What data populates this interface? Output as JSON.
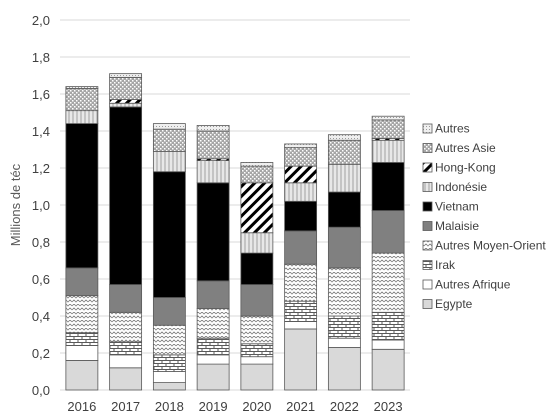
{
  "chart_data": {
    "type": "bar",
    "stacked": true,
    "title": "",
    "xlabel": "",
    "ylabel": "Millions de téc",
    "ylim": [
      0,
      2.0
    ],
    "yticks": [
      "0,0",
      "0,2",
      "0,4",
      "0,6",
      "0,8",
      "1,0",
      "1,2",
      "1,4",
      "1,6",
      "1,8",
      "2,0"
    ],
    "grid": true,
    "legend_position": "right",
    "categories": [
      "2016",
      "2017",
      "2018",
      "2019",
      "2020",
      "2021",
      "2022",
      "2023"
    ],
    "series": [
      {
        "name": "Egypte",
        "values": [
          0.16,
          0.12,
          0.04,
          0.14,
          0.14,
          0.33,
          0.23,
          0.22
        ]
      },
      {
        "name": "Autres Afrique",
        "values": [
          0.08,
          0.07,
          0.06,
          0.05,
          0.04,
          0.04,
          0.05,
          0.05
        ]
      },
      {
        "name": "Irak",
        "values": [
          0.07,
          0.07,
          0.09,
          0.09,
          0.07,
          0.11,
          0.12,
          0.15
        ]
      },
      {
        "name": "Autres Moyen-Orient",
        "values": [
          0.2,
          0.16,
          0.16,
          0.16,
          0.15,
          0.2,
          0.26,
          0.32
        ]
      },
      {
        "name": "Malaisie",
        "values": [
          0.15,
          0.15,
          0.15,
          0.15,
          0.17,
          0.18,
          0.22,
          0.23
        ]
      },
      {
        "name": "Vietnam",
        "values": [
          0.78,
          0.96,
          0.68,
          0.53,
          0.17,
          0.16,
          0.19,
          0.26
        ]
      },
      {
        "name": "Indonésie",
        "values": [
          0.07,
          0.02,
          0.11,
          0.12,
          0.11,
          0.1,
          0.15,
          0.12
        ]
      },
      {
        "name": "Hong-Kong",
        "values": [
          0.0,
          0.02,
          0.0,
          0.01,
          0.27,
          0.09,
          0.0,
          0.01
        ]
      },
      {
        "name": "Autres Asie",
        "values": [
          0.12,
          0.12,
          0.12,
          0.15,
          0.09,
          0.1,
          0.13,
          0.1
        ]
      },
      {
        "name": "Autres",
        "values": [
          0.01,
          0.02,
          0.03,
          0.03,
          0.02,
          0.02,
          0.03,
          0.02
        ]
      }
    ],
    "legend_order": [
      "Autres",
      "Autres Asie",
      "Hong-Kong",
      "Indonésie",
      "Vietnam",
      "Malaisie",
      "Autres Moyen-Orient",
      "Irak",
      "Autres Afrique",
      "Egypte"
    ],
    "series_styles": {
      "Egypte": {
        "fill": "#d9d9d9",
        "pattern": "solid"
      },
      "Autres Afrique": {
        "fill": "#ffffff",
        "pattern": "solid"
      },
      "Irak": {
        "fill": "#ffffff",
        "pattern": "bricks"
      },
      "Autres Moyen-Orient": {
        "fill": "#ffffff",
        "pattern": "zigzag"
      },
      "Malaisie": {
        "fill": "#808080",
        "pattern": "solid"
      },
      "Vietnam": {
        "fill": "#000000",
        "pattern": "solid"
      },
      "Indonésie": {
        "fill": "#d0d0d0",
        "pattern": "vlines"
      },
      "Hong-Kong": {
        "fill": "#ffffff",
        "pattern": "diagonal"
      },
      "Autres Asie": {
        "fill": "#a6a6a6",
        "pattern": "dots"
      },
      "Autres": {
        "fill": "#e6e6e6",
        "pattern": "fine"
      }
    },
    "colors": {
      "border": "#595959",
      "grid": "#d9d9d9",
      "text": "#404040"
    }
  }
}
